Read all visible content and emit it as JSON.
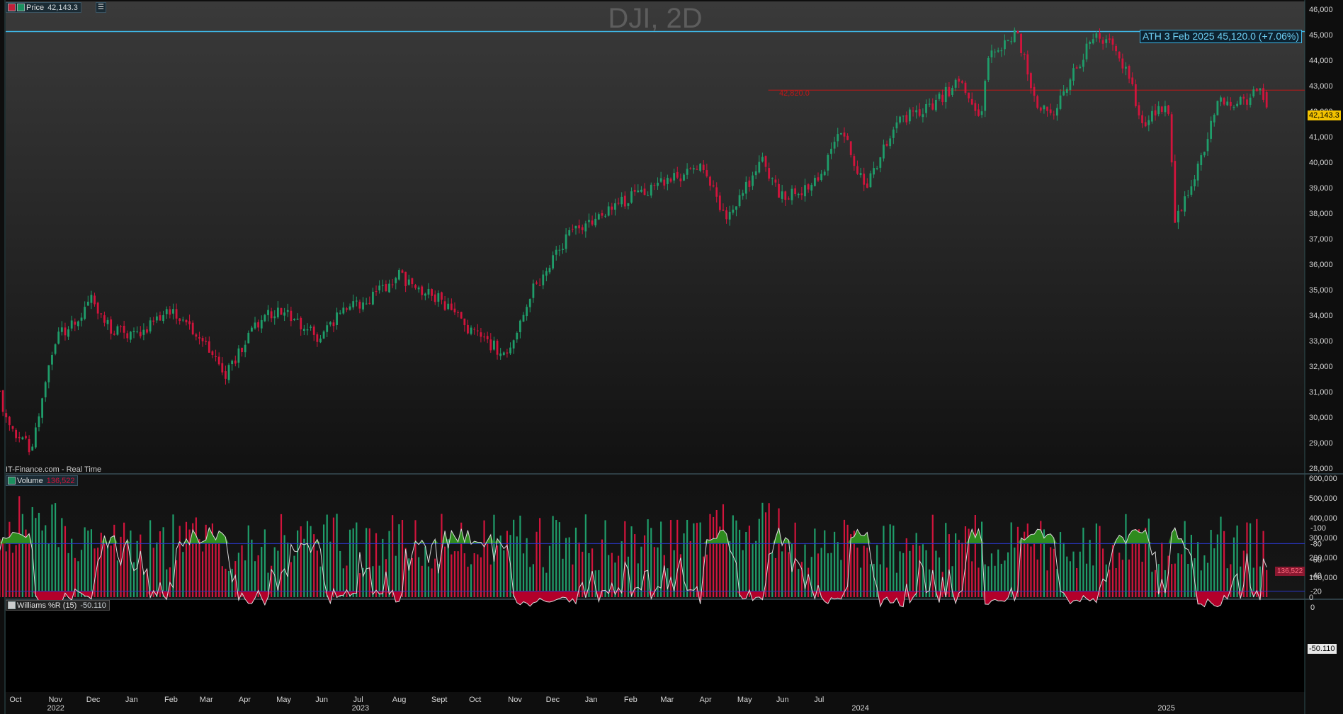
{
  "title": "DJI, 2D",
  "source_label": "IT-Finance.com - Real Time",
  "price_panel": {
    "label": "Price",
    "last_value": "42,143.3"
  },
  "volume_panel": {
    "label": "Volume",
    "last_value": "136,522"
  },
  "williams_panel": {
    "label": "Williams %R (15)",
    "last_value": "-50.110"
  },
  "ath_label": "ATH 3 Feb 2025 45,120.0 (+7.06%)",
  "resistance_label": "42,820.0",
  "colors": {
    "up": "#1f9d6a",
    "down": "#d2143c",
    "ath_line": "#3fb7e6",
    "resistance": "#c01818",
    "wr_line": "#dcdcdc",
    "wr_bands": "#2a37c8",
    "last_price_bg": "#f2c200"
  },
  "chart_data": [
    {
      "type": "candlestick",
      "ylim": [
        27800,
        46300
      ],
      "y_ticks": [
        "28,000",
        "29,000",
        "30,000",
        "31,000",
        "32,000",
        "33,000",
        "34,000",
        "35,000",
        "36,000",
        "37,000",
        "38,000",
        "39,000",
        "40,000",
        "41,000",
        "42,000",
        "43,000",
        "44,000",
        "45,000",
        "46,000"
      ],
      "x_ticks": [
        "Oct",
        "Nov",
        "Dec",
        "Jan",
        "Feb",
        "Mar",
        "Apr",
        "May",
        "Jun",
        "Jul",
        "Aug",
        "Sept",
        "Oct",
        "Nov",
        "Dec",
        "Jan",
        "Feb",
        "Mar",
        "Apr",
        "May",
        "Jun",
        "Jul"
      ],
      "year_ticks": [
        "2022",
        "2023",
        "2024",
        "2025"
      ],
      "x": [
        "2022-09-15",
        "2022-09-30",
        "2022-10-13",
        "2022-11-01",
        "2022-11-30",
        "2022-12-15",
        "2023-01-03",
        "2023-02-02",
        "2023-02-28",
        "2023-03-15",
        "2023-04-14",
        "2023-05-01",
        "2023-05-31",
        "2023-06-15",
        "2023-07-03",
        "2023-07-31",
        "2023-08-15",
        "2023-09-01",
        "2023-09-29",
        "2023-10-27",
        "2023-11-14",
        "2023-12-14",
        "2024-01-02",
        "2024-02-01",
        "2024-02-22",
        "2024-03-28",
        "2024-04-17",
        "2024-05-15",
        "2024-05-30",
        "2024-06-28",
        "2024-07-17",
        "2024-08-05",
        "2024-08-30",
        "2024-09-30",
        "2024-10-18",
        "2024-11-05",
        "2024-11-11",
        "2024-11-29",
        "2024-12-04",
        "2024-12-19",
        "2025-01-02",
        "2025-01-13",
        "2025-02-03",
        "2025-02-18",
        "2025-03-03",
        "2025-03-13",
        "2025-04-02",
        "2025-04-08",
        "2025-04-21",
        "2025-05-12",
        "2025-06-02",
        "2025-06-12",
        "2025-06-20"
      ],
      "close": [
        31100,
        29200,
        28800,
        33000,
        34600,
        33400,
        33200,
        34200,
        33000,
        31600,
        33900,
        34100,
        33000,
        34200,
        34400,
        35600,
        35000,
        34700,
        33300,
        32400,
        34900,
        37200,
        37800,
        38600,
        39100,
        39700,
        37800,
        40000,
        38600,
        39200,
        41200,
        39000,
        41600,
        42300,
        43200,
        41900,
        44100,
        44900,
        45000,
        42300,
        42100,
        43100,
        45000,
        44500,
        43200,
        41400,
        42400,
        37800,
        38900,
        42400,
        42300,
        43000,
        42143.3
      ],
      "resistance_level": 42820,
      "ath": 45120
    },
    {
      "type": "bar",
      "name": "Volume",
      "ylim": [
        0,
        600000
      ],
      "y_ticks": [
        "0",
        "100,000",
        "200,000",
        "300,000",
        "400,000",
        "500,000",
        "600,000"
      ],
      "last": 136522
    },
    {
      "type": "line",
      "name": "Williams %R (15)",
      "ylim": [
        -100,
        0
      ],
      "y_ticks": [
        "0",
        "-20",
        "-40",
        "-60",
        "-80",
        "-100"
      ],
      "overbought": -20,
      "oversold": -80,
      "last": -50.11
    }
  ]
}
